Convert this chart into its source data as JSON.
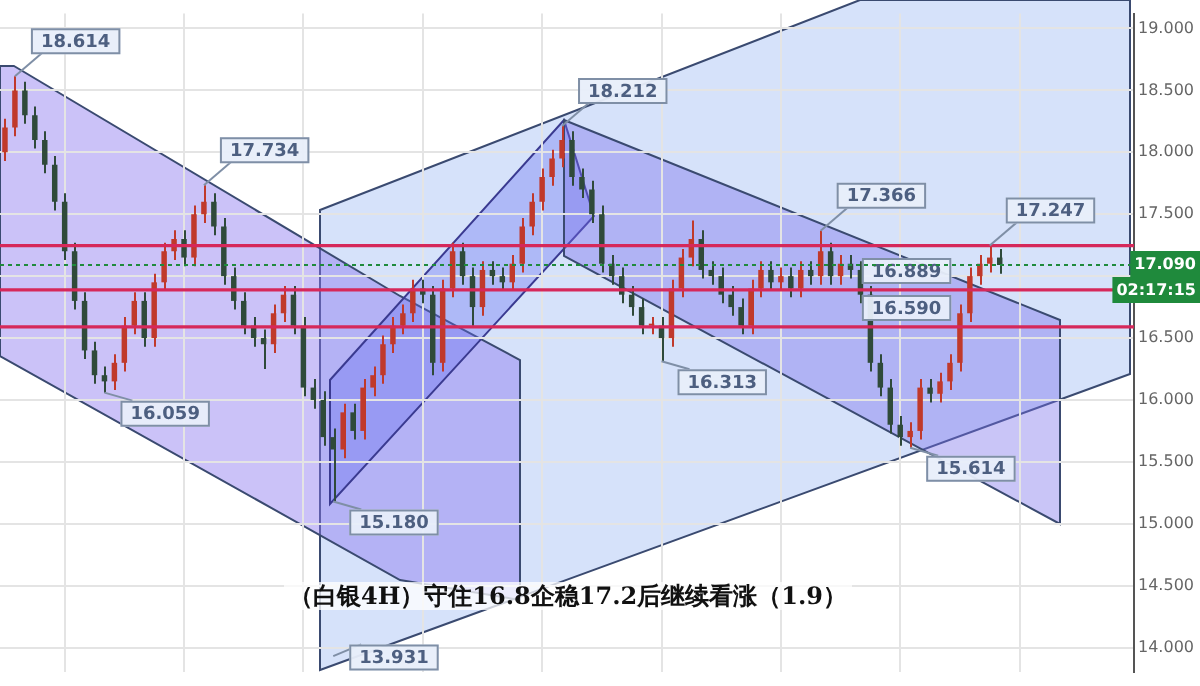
{
  "chart_data": {
    "type": "candlestick",
    "title": "（白银4H）守住16.8企稳17.2后继续看涨（1.9）",
    "categories": [
      null,
      null,
      null,
      null,
      null,
      null,
      null,
      null,
      null,
      null,
      null,
      null,
      null,
      null,
      null,
      null,
      null,
      null,
      null,
      null,
      null,
      null,
      null,
      null,
      null,
      null,
      null,
      null,
      null,
      null,
      null,
      null,
      null,
      null,
      null,
      null,
      null,
      null,
      null,
      null,
      null,
      null,
      null,
      null,
      null,
      null,
      null,
      null,
      null,
      null,
      null,
      null,
      null,
      null,
      null,
      null,
      null,
      null,
      null,
      null,
      null,
      null,
      null,
      null,
      null,
      null,
      null,
      null,
      null,
      null,
      null,
      null,
      null,
      null,
      null,
      null,
      null,
      null,
      null,
      null,
      null,
      null,
      null,
      null,
      null,
      null,
      null,
      null,
      null,
      null,
      null,
      null,
      null,
      null,
      null,
      null,
      null,
      null,
      null,
      null,
      null,
      null,
      null,
      null,
      null,
      null,
      null,
      null,
      null,
      null,
      null,
      null,
      null,
      null
    ],
    "ohlc": [
      [
        18.0,
        18.27,
        17.93,
        18.2
      ],
      [
        18.2,
        18.614,
        18.13,
        18.5
      ],
      [
        18.5,
        18.57,
        18.23,
        18.3
      ],
      [
        18.3,
        18.37,
        18.03,
        18.1
      ],
      [
        18.1,
        18.17,
        17.83,
        17.9
      ],
      [
        17.9,
        17.97,
        17.53,
        17.6
      ],
      [
        17.6,
        17.67,
        17.13,
        17.2
      ],
      [
        17.2,
        17.27,
        16.73,
        16.8
      ],
      [
        16.8,
        16.87,
        16.33,
        16.4
      ],
      [
        16.4,
        16.47,
        16.13,
        16.2
      ],
      [
        16.2,
        16.27,
        16.059,
        16.15
      ],
      [
        16.15,
        16.37,
        16.08,
        16.3
      ],
      [
        16.3,
        16.67,
        16.23,
        16.6
      ],
      [
        16.6,
        16.87,
        16.53,
        16.8
      ],
      [
        16.8,
        16.87,
        16.43,
        16.5
      ],
      [
        16.5,
        17.02,
        16.43,
        16.95
      ],
      [
        16.95,
        17.27,
        16.88,
        17.2
      ],
      [
        17.2,
        17.37,
        17.13,
        17.3
      ],
      [
        17.3,
        17.37,
        17.08,
        17.15
      ],
      [
        17.15,
        17.57,
        17.08,
        17.5
      ],
      [
        17.5,
        17.734,
        17.43,
        17.6
      ],
      [
        17.6,
        17.67,
        17.33,
        17.4
      ],
      [
        17.4,
        17.47,
        16.93,
        17.0
      ],
      [
        17.0,
        17.07,
        16.73,
        16.8
      ],
      [
        16.8,
        16.87,
        16.53,
        16.6
      ],
      [
        16.6,
        16.67,
        16.43,
        16.5
      ],
      [
        16.5,
        16.57,
        16.25,
        16.45
      ],
      [
        16.45,
        16.77,
        16.38,
        16.7
      ],
      [
        16.7,
        16.92,
        16.63,
        16.85
      ],
      [
        16.85,
        16.92,
        16.53,
        16.6
      ],
      [
        16.6,
        16.67,
        16.03,
        16.1
      ],
      [
        16.1,
        16.17,
        15.93,
        16.0
      ],
      [
        16.0,
        16.07,
        15.63,
        15.7
      ],
      [
        15.7,
        15.77,
        15.18,
        15.6
      ],
      [
        15.6,
        15.97,
        15.53,
        15.9
      ],
      [
        15.9,
        15.97,
        15.68,
        15.75
      ],
      [
        15.75,
        16.17,
        15.68,
        16.1
      ],
      [
        16.1,
        16.27,
        16.03,
        16.2
      ],
      [
        16.2,
        16.52,
        16.13,
        16.45
      ],
      [
        16.45,
        16.67,
        16.38,
        16.6
      ],
      [
        16.6,
        16.77,
        16.53,
        16.7
      ],
      [
        16.7,
        16.97,
        16.63,
        16.9
      ],
      [
        16.9,
        16.97,
        16.78,
        16.85
      ],
      [
        16.85,
        16.92,
        16.2,
        16.3
      ],
      [
        16.3,
        16.97,
        16.23,
        16.9
      ],
      [
        16.9,
        17.27,
        16.83,
        17.2
      ],
      [
        17.2,
        17.27,
        16.93,
        17.0
      ],
      [
        17.0,
        17.07,
        16.6,
        16.75
      ],
      [
        16.75,
        17.12,
        16.68,
        17.05
      ],
      [
        17.05,
        17.12,
        16.93,
        17.0
      ],
      [
        17.0,
        17.07,
        16.88,
        16.95
      ],
      [
        16.95,
        17.17,
        16.88,
        17.1
      ],
      [
        17.1,
        17.47,
        17.03,
        17.4
      ],
      [
        17.4,
        17.67,
        17.33,
        17.6
      ],
      [
        17.6,
        17.87,
        17.53,
        17.8
      ],
      [
        17.8,
        18.02,
        17.73,
        17.95
      ],
      [
        17.95,
        18.212,
        17.88,
        18.1
      ],
      [
        18.1,
        18.17,
        17.73,
        17.8
      ],
      [
        17.8,
        17.87,
        17.63,
        17.7
      ],
      [
        17.7,
        17.77,
        17.43,
        17.5
      ],
      [
        17.5,
        17.57,
        17.03,
        17.1
      ],
      [
        17.1,
        17.17,
        16.93,
        17.0
      ],
      [
        17.0,
        17.07,
        16.78,
        16.85
      ],
      [
        16.85,
        16.92,
        16.68,
        16.75
      ],
      [
        16.75,
        16.82,
        16.53,
        16.6
      ],
      [
        16.6,
        16.67,
        16.53,
        16.6
      ],
      [
        16.6,
        16.67,
        16.313,
        16.5
      ],
      [
        16.5,
        16.97,
        16.43,
        16.9
      ],
      [
        16.9,
        17.22,
        16.83,
        17.15
      ],
      [
        17.15,
        17.45,
        17.08,
        17.3
      ],
      [
        17.3,
        17.37,
        16.98,
        17.05
      ],
      [
        17.05,
        17.12,
        16.93,
        17.0
      ],
      [
        17.0,
        17.07,
        16.78,
        16.85
      ],
      [
        16.85,
        16.92,
        16.68,
        16.75
      ],
      [
        16.75,
        16.82,
        16.53,
        16.6
      ],
      [
        16.6,
        16.97,
        16.53,
        16.9
      ],
      [
        16.9,
        17.12,
        16.83,
        17.05
      ],
      [
        17.05,
        17.12,
        16.88,
        16.95
      ],
      [
        16.95,
        17.07,
        16.88,
        17.0
      ],
      [
        17.0,
        17.07,
        16.83,
        16.9
      ],
      [
        16.9,
        17.12,
        16.83,
        17.05
      ],
      [
        17.05,
        17.12,
        16.93,
        17.0
      ],
      [
        17.0,
        17.366,
        16.93,
        17.2
      ],
      [
        17.2,
        17.27,
        16.93,
        17.0
      ],
      [
        17.0,
        17.17,
        16.93,
        17.1
      ],
      [
        17.1,
        17.17,
        16.98,
        17.05
      ],
      [
        17.05,
        17.12,
        16.78,
        16.85
      ],
      [
        16.85,
        16.92,
        16.23,
        16.3
      ],
      [
        16.3,
        16.37,
        16.03,
        16.1
      ],
      [
        16.1,
        16.17,
        15.73,
        15.8
      ],
      [
        15.8,
        15.87,
        15.63,
        15.7
      ],
      [
        15.7,
        15.82,
        15.614,
        15.75
      ],
      [
        15.75,
        16.17,
        15.68,
        16.1
      ],
      [
        16.1,
        16.17,
        15.98,
        16.05
      ],
      [
        16.05,
        16.22,
        15.98,
        16.15
      ],
      [
        16.15,
        16.37,
        16.08,
        16.3
      ],
      [
        16.3,
        16.77,
        16.23,
        16.7
      ],
      [
        16.7,
        17.07,
        16.63,
        17.0
      ],
      [
        17.0,
        17.17,
        16.93,
        17.1
      ],
      [
        17.1,
        17.247,
        17.03,
        17.15
      ],
      [
        17.15,
        17.22,
        17.02,
        17.09
      ],
      null,
      null,
      null,
      null,
      null,
      null,
      null,
      null,
      null,
      null,
      null,
      null,
      null
    ],
    "ylim": [
      13.8,
      19.12
    ],
    "yticks": [
      {
        "value": 14,
        "label": "14.000"
      },
      {
        "value": 14.5,
        "label": "14.500"
      },
      {
        "value": 15,
        "label": "15.000"
      },
      {
        "value": 15.5,
        "label": "15.500"
      },
      {
        "value": 16,
        "label": "16.000"
      },
      {
        "value": 16.5,
        "label": "16.500"
      },
      {
        "value": 17,
        "label": null
      },
      {
        "value": 17.5,
        "label": "17.500"
      },
      {
        "value": 18,
        "label": "18.000"
      },
      {
        "value": 18.5,
        "label": "18.500"
      },
      {
        "value": 19,
        "label": "19.000"
      }
    ],
    "tick_labels": "y",
    "grid": true,
    "legend": false,
    "ref_lines": [
      {
        "axis": "y",
        "value": 17.247,
        "label": null,
        "color": "#d6285a"
      },
      {
        "axis": "y",
        "value": 16.889,
        "label": "16.889",
        "color": "#d6285a"
      },
      {
        "axis": "y",
        "value": 16.59,
        "label": "16.590",
        "color": "#d6285a"
      },
      {
        "axis": "y",
        "value": 17.09,
        "label": "17.090",
        "color": "#1f8a3c",
        "line_style": "dotted"
      }
    ],
    "annotations": [
      "02:17:15",
      "18.614",
      "16.059",
      "17.734",
      "15.180",
      "13.931",
      "18.212",
      "16.313",
      "17.366",
      "15.614",
      "17.247"
    ]
  }
}
